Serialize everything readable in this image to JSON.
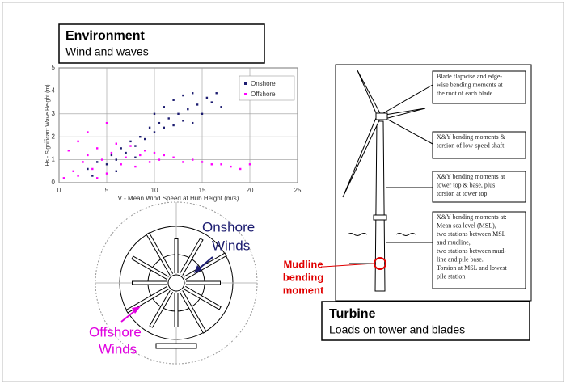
{
  "environment": {
    "title": "Environment",
    "subtitle": "Wind and waves"
  },
  "chart_data": {
    "type": "scatter",
    "x_label": "V - Mean Wind Speed at Hub Height (m/s)",
    "y_label": "Hs - Significant Wave Height (m)",
    "xlim": [
      0,
      25
    ],
    "ylim": [
      0,
      5
    ],
    "xticks": [
      0,
      5,
      10,
      15,
      20,
      25
    ],
    "yticks": [
      0,
      1,
      2,
      3,
      4,
      5
    ],
    "grid": true,
    "legend": "upper right",
    "series": [
      {
        "name": "Onshore",
        "color": "#1c1c70",
        "x": [
          3,
          4,
          5,
          5.5,
          6,
          6.5,
          7,
          7.5,
          8,
          8.5,
          9,
          9.5,
          10,
          10,
          10.5,
          11,
          11,
          11.5,
          12,
          12,
          12.5,
          13,
          13,
          13.5,
          14,
          14,
          14.5,
          15,
          15.5,
          16,
          16.5,
          17,
          3.5,
          6,
          8
        ],
        "y": [
          0.6,
          0.9,
          0.8,
          1.2,
          1.0,
          1.5,
          1.3,
          1.8,
          1.6,
          2.0,
          1.9,
          2.4,
          2.2,
          3.0,
          2.6,
          2.4,
          3.3,
          2.8,
          2.5,
          3.6,
          3.0,
          2.7,
          3.8,
          3.2,
          2.6,
          3.9,
          3.4,
          3.0,
          3.7,
          3.5,
          3.9,
          3.3,
          0.3,
          0.5,
          1.1
        ]
      },
      {
        "name": "Offshore",
        "color": "#ff00ff",
        "x": [
          0.5,
          1,
          1.5,
          2,
          2.5,
          3,
          3,
          3.5,
          4,
          4.5,
          5,
          5,
          5.5,
          6,
          6.5,
          7,
          7.5,
          8,
          8.5,
          9,
          9.5,
          10,
          10.5,
          11,
          12,
          13,
          14,
          15,
          16,
          17,
          18,
          19,
          20,
          2,
          4
        ],
        "y": [
          0.2,
          1.4,
          0.5,
          1.8,
          0.9,
          1.2,
          2.2,
          0.6,
          1.5,
          1.0,
          2.6,
          0.4,
          1.3,
          1.7,
          0.8,
          1.1,
          1.6,
          0.7,
          1.2,
          1.4,
          0.9,
          1.3,
          1.0,
          1.2,
          1.1,
          0.9,
          1.0,
          0.9,
          0.8,
          0.8,
          0.7,
          0.6,
          0.8,
          0.3,
          0.2
        ]
      }
    ]
  },
  "wind_rose": {
    "onshore_label": [
      "Onshore",
      "Winds"
    ],
    "offshore_label": [
      "Offshore",
      "Winds"
    ]
  },
  "turbine": {
    "title": "Turbine",
    "subtitle": "Loads on tower and blades",
    "mudline_label": [
      "Mudline",
      "bending",
      "moment"
    ],
    "annotations": [
      [
        "Blade flapwise and edge-",
        "wise bending moments at",
        "the root of each blade."
      ],
      [
        "X&Y bending moments &",
        "torsion of low-speed shaft"
      ],
      [
        "X&Y bending moments at",
        "tower top & base, plus",
        "torsion at  tower top"
      ],
      [
        "X&Y bending moments at:",
        "Mean sea level (MSL),",
        "two stations between MSL",
        "and mudline,",
        "two stations between mud-",
        "line and pile base.",
        "Torsion at MSL and lowest",
        "pile station"
      ]
    ]
  }
}
